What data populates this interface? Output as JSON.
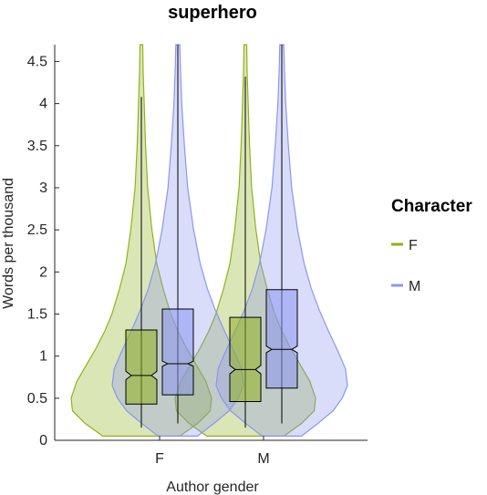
{
  "chart_data": {
    "type": "violin",
    "title": "superhero",
    "xlabel": "Author gender",
    "ylabel": "Words per thousand",
    "categories": [
      "F",
      "M"
    ],
    "ylim": [
      0,
      4.7
    ],
    "yticks": [
      "0",
      "0.5",
      "1",
      "1.5",
      "2",
      "2.5",
      "3",
      "3.5",
      "4",
      "4.5"
    ],
    "grid": false,
    "legend": {
      "title": "Character",
      "position": "right",
      "entries": [
        {
          "label": "F",
          "color": "#8fb21b"
        },
        {
          "label": "M",
          "color": "#8c96f0"
        }
      ]
    },
    "series": [
      {
        "name": "F",
        "color": "#8fb21b",
        "groups": [
          {
            "category": "F",
            "q1": 0.43,
            "median": 0.77,
            "q3": 1.31,
            "whisker_low": 0.15,
            "whisker_high": 4.08,
            "notch_low": 0.72,
            "notch_high": 0.82,
            "density": [
              [
                0.05,
                0.55
              ],
              [
                0.2,
                0.8
              ],
              [
                0.35,
                0.98
              ],
              [
                0.5,
                1.0
              ],
              [
                0.7,
                0.92
              ],
              [
                0.9,
                0.78
              ],
              [
                1.1,
                0.64
              ],
              [
                1.3,
                0.52
              ],
              [
                1.5,
                0.42
              ],
              [
                1.8,
                0.31
              ],
              [
                2.1,
                0.22
              ],
              [
                2.5,
                0.15
              ],
              [
                3.0,
                0.09
              ],
              [
                3.5,
                0.06
              ],
              [
                4.0,
                0.04
              ],
              [
                4.4,
                0.025
              ],
              [
                4.7,
                0.02
              ]
            ]
          },
          {
            "category": "M",
            "q1": 0.46,
            "median": 0.84,
            "q3": 1.46,
            "whisker_low": 0.15,
            "whisker_high": 4.32,
            "notch_low": 0.79,
            "notch_high": 0.89,
            "density": [
              [
                0.05,
                0.55
              ],
              [
                0.2,
                0.8
              ],
              [
                0.35,
                0.98
              ],
              [
                0.5,
                1.0
              ],
              [
                0.7,
                0.92
              ],
              [
                0.9,
                0.78
              ],
              [
                1.1,
                0.64
              ],
              [
                1.3,
                0.52
              ],
              [
                1.5,
                0.42
              ],
              [
                1.8,
                0.31
              ],
              [
                2.1,
                0.22
              ],
              [
                2.5,
                0.15
              ],
              [
                3.0,
                0.09
              ],
              [
                3.5,
                0.06
              ],
              [
                4.0,
                0.04
              ],
              [
                4.4,
                0.025
              ],
              [
                4.7,
                0.02
              ]
            ]
          }
        ]
      },
      {
        "name": "M",
        "color": "#8c96f0",
        "groups": [
          {
            "category": "F",
            "q1": 0.54,
            "median": 0.91,
            "q3": 1.56,
            "whisker_low": 0.2,
            "whisker_high": 4.7,
            "notch_low": 0.88,
            "notch_high": 0.94,
            "density": [
              [
                0.05,
                0.3
              ],
              [
                0.2,
                0.55
              ],
              [
                0.35,
                0.78
              ],
              [
                0.5,
                0.92
              ],
              [
                0.65,
                1.0
              ],
              [
                0.85,
                0.97
              ],
              [
                1.05,
                0.86
              ],
              [
                1.3,
                0.71
              ],
              [
                1.55,
                0.57
              ],
              [
                1.8,
                0.45
              ],
              [
                2.1,
                0.34
              ],
              [
                2.5,
                0.24
              ],
              [
                3.0,
                0.15
              ],
              [
                3.5,
                0.1
              ],
              [
                4.0,
                0.06
              ],
              [
                4.4,
                0.04
              ],
              [
                4.7,
                0.03
              ]
            ]
          },
          {
            "category": "M",
            "q1": 0.62,
            "median": 1.08,
            "q3": 1.79,
            "whisker_low": 0.2,
            "whisker_high": 4.7,
            "notch_low": 1.04,
            "notch_high": 1.12,
            "density": [
              [
                0.05,
                0.3
              ],
              [
                0.2,
                0.55
              ],
              [
                0.35,
                0.78
              ],
              [
                0.5,
                0.92
              ],
              [
                0.65,
                1.0
              ],
              [
                0.85,
                0.97
              ],
              [
                1.05,
                0.86
              ],
              [
                1.3,
                0.71
              ],
              [
                1.55,
                0.57
              ],
              [
                1.8,
                0.45
              ],
              [
                2.1,
                0.34
              ],
              [
                2.5,
                0.24
              ],
              [
                3.0,
                0.15
              ],
              [
                3.5,
                0.1
              ],
              [
                4.0,
                0.06
              ],
              [
                4.4,
                0.04
              ],
              [
                4.7,
                0.03
              ]
            ]
          }
        ]
      }
    ]
  }
}
